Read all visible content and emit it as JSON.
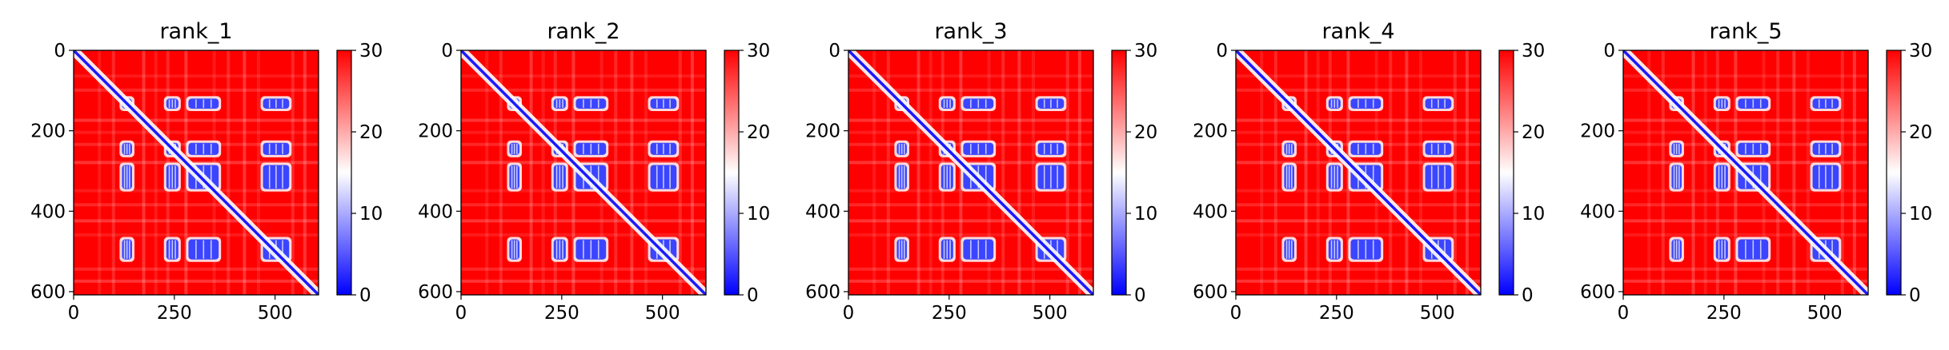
{
  "chart_data": [
    {
      "type": "heatmap",
      "title": "rank_1",
      "matrix_size": 608,
      "xlim": [
        0,
        608
      ],
      "ylim": [
        608,
        0
      ],
      "xticks": [
        0,
        250,
        500
      ],
      "yticks": [
        0,
        200,
        400,
        600
      ],
      "colorbar": {
        "vmin": 0,
        "vmax": 30,
        "ticks": [
          0,
          10,
          20,
          30
        ],
        "colormap": "bwr"
      },
      "diagonal": "low distance band along main diagonal",
      "low_value_blocks_x": [
        [
          120,
          145
        ],
        [
          230,
          260
        ],
        [
          285,
          360
        ],
        [
          470,
          535
        ]
      ],
      "low_value_blocks_y": [
        [
          120,
          145
        ],
        [
          230,
          260
        ],
        [
          285,
          345
        ],
        [
          470,
          520
        ]
      ]
    },
    {
      "type": "heatmap",
      "title": "rank_2",
      "matrix_size": 608,
      "xlim": [
        0,
        608
      ],
      "ylim": [
        608,
        0
      ],
      "xticks": [
        0,
        250,
        500
      ],
      "yticks": [
        0,
        200,
        400,
        600
      ],
      "colorbar": {
        "vmin": 0,
        "vmax": 30,
        "ticks": [
          0,
          10,
          20,
          30
        ],
        "colormap": "bwr"
      },
      "diagonal": "low distance band along main diagonal",
      "low_value_blocks_x": [
        [
          120,
          145
        ],
        [
          230,
          260
        ],
        [
          285,
          360
        ],
        [
          470,
          535
        ]
      ],
      "low_value_blocks_y": [
        [
          120,
          145
        ],
        [
          230,
          260
        ],
        [
          285,
          345
        ],
        [
          470,
          520
        ]
      ]
    },
    {
      "type": "heatmap",
      "title": "rank_3",
      "matrix_size": 608,
      "xlim": [
        0,
        608
      ],
      "ylim": [
        608,
        0
      ],
      "xticks": [
        0,
        250,
        500
      ],
      "yticks": [
        0,
        200,
        400,
        600
      ],
      "colorbar": {
        "vmin": 0,
        "vmax": 30,
        "ticks": [
          0,
          10,
          20,
          30
        ],
        "colormap": "bwr"
      },
      "diagonal": "low distance band along main diagonal",
      "low_value_blocks_x": [
        [
          120,
          145
        ],
        [
          230,
          260
        ],
        [
          285,
          360
        ],
        [
          470,
          535
        ]
      ],
      "low_value_blocks_y": [
        [
          120,
          145
        ],
        [
          230,
          260
        ],
        [
          285,
          345
        ],
        [
          470,
          520
        ]
      ]
    },
    {
      "type": "heatmap",
      "title": "rank_4",
      "matrix_size": 608,
      "xlim": [
        0,
        608
      ],
      "ylim": [
        608,
        0
      ],
      "xticks": [
        0,
        250,
        500
      ],
      "yticks": [
        0,
        200,
        400,
        600
      ],
      "colorbar": {
        "vmin": 0,
        "vmax": 30,
        "ticks": [
          0,
          10,
          20,
          30
        ],
        "colormap": "bwr"
      },
      "diagonal": "low distance band along main diagonal",
      "low_value_blocks_x": [
        [
          120,
          145
        ],
        [
          230,
          260
        ],
        [
          285,
          360
        ],
        [
          470,
          535
        ]
      ],
      "low_value_blocks_y": [
        [
          120,
          145
        ],
        [
          230,
          260
        ],
        [
          285,
          345
        ],
        [
          470,
          520
        ]
      ]
    },
    {
      "type": "heatmap",
      "title": "rank_5",
      "matrix_size": 608,
      "xlim": [
        0,
        608
      ],
      "ylim": [
        608,
        0
      ],
      "xticks": [
        0,
        250,
        500
      ],
      "yticks": [
        0,
        200,
        400,
        600
      ],
      "colorbar": {
        "vmin": 0,
        "vmax": 30,
        "ticks": [
          0,
          10,
          20,
          30
        ],
        "colormap": "bwr"
      },
      "diagonal": "low distance band along main diagonal",
      "low_value_blocks_x": [
        [
          120,
          145
        ],
        [
          230,
          260
        ],
        [
          285,
          360
        ],
        [
          470,
          535
        ]
      ],
      "low_value_blocks_y": [
        [
          120,
          145
        ],
        [
          230,
          260
        ],
        [
          285,
          345
        ],
        [
          470,
          520
        ]
      ]
    }
  ],
  "colors": {
    "high": "#ff0000",
    "mid": "#ffffff",
    "low": "#0000ff",
    "axis": "#000000"
  }
}
